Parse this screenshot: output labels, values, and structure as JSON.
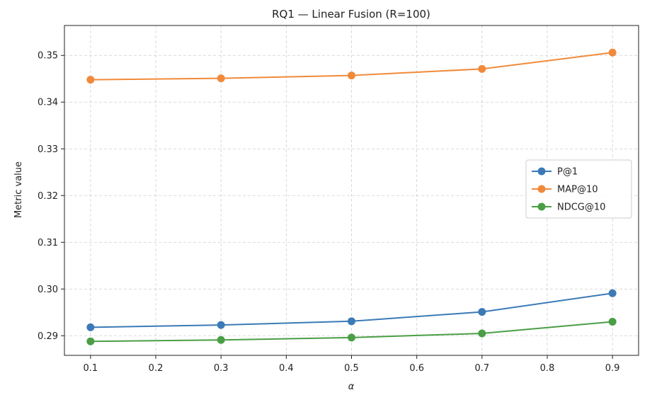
{
  "chart_data": {
    "type": "line",
    "title": "RQ1 — Linear Fusion (R=100)",
    "xlabel": "α",
    "ylabel": "Metric value",
    "x": [
      0.1,
      0.3,
      0.5,
      0.7,
      0.9
    ],
    "xlim": [
      0.06,
      0.94
    ],
    "ylim": [
      0.2858,
      0.3564
    ],
    "xticks": [
      0.1,
      0.2,
      0.3,
      0.4,
      0.5,
      0.6,
      0.7,
      0.8,
      0.9
    ],
    "xtick_labels": [
      "0.1",
      "0.2",
      "0.3",
      "0.4",
      "0.5",
      "0.6",
      "0.7",
      "0.8",
      "0.9"
    ],
    "yticks": [
      0.29,
      0.3,
      0.31,
      0.32,
      0.33,
      0.34,
      0.35
    ],
    "ytick_labels": [
      "0.29",
      "0.30",
      "0.31",
      "0.32",
      "0.33",
      "0.34",
      "0.35"
    ],
    "grid": true,
    "legend_position": "center-right",
    "series": [
      {
        "name": "P@1",
        "color": "#3b7ab6",
        "values": [
          0.2918,
          0.2923,
          0.2931,
          0.2951,
          0.2991
        ]
      },
      {
        "name": "MAP@10",
        "color": "#f08a3a",
        "values": [
          0.3448,
          0.3451,
          0.3457,
          0.3471,
          0.3506
        ]
      },
      {
        "name": "NDCG@10",
        "color": "#4a9e45",
        "values": [
          0.2888,
          0.2891,
          0.2896,
          0.2905,
          0.293
        ]
      }
    ]
  }
}
